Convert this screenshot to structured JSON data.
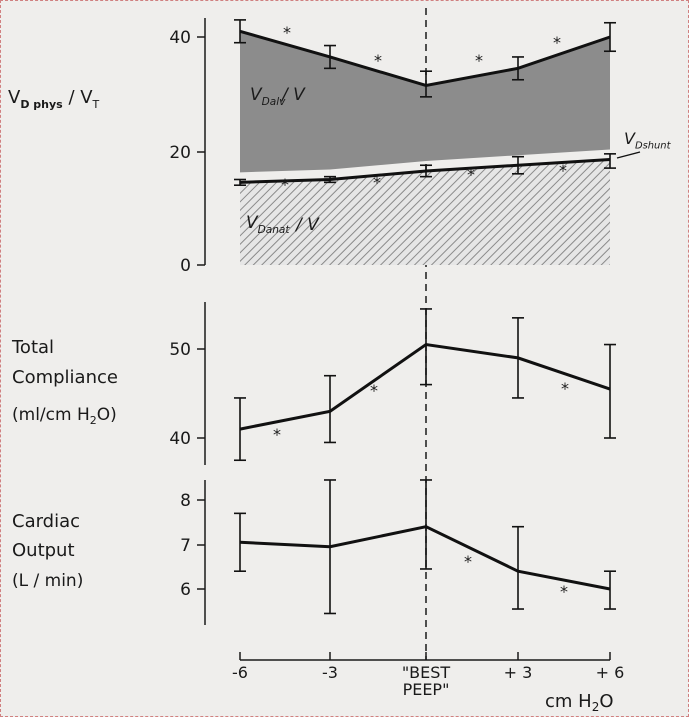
{
  "chart_data": {
    "type": "line",
    "x_positions": [
      -6,
      -3,
      0,
      3,
      6
    ],
    "x_ticks": [
      "-6",
      "-3",
      "\"BEST\nPEEP\"",
      "+ 3",
      "+ 6"
    ],
    "x_unit": "cm H2O",
    "panels": [
      {
        "ylabel": [
          "VDphys / VT"
        ],
        "yticks": [
          "0",
          "20",
          "40"
        ],
        "ylim": [
          0,
          43
        ],
        "series": [
          {
            "name": "VDphys/VT",
            "values": [
              41,
              36.5,
              31.5,
              34.5,
              40
            ],
            "err_low": [
              39,
              34.5,
              29.5,
              32.5,
              37.5
            ],
            "err_high": [
              43,
              38.5,
              34,
              36.5,
              42.5
            ]
          },
          {
            "name": "VDanat/VT",
            "values": [
              14.5,
              15,
              16.5,
              17.5,
              18.5
            ],
            "err_low": [
              14,
              14.5,
              15.5,
              16,
              17
            ],
            "err_high": [
              15,
              15.5,
              17.5,
              19,
              19.5
            ]
          }
        ],
        "annotations": [
          "VDalv/VT",
          "VDanat/VT",
          "VDshunt",
          "*"
        ]
      },
      {
        "ylabel": [
          "Total",
          "Compliance",
          "(ml/cm H2O)"
        ],
        "yticks": [
          "40",
          "50"
        ],
        "ylim": [
          37,
          55
        ],
        "series": [
          {
            "values": [
              41,
              43,
              50.5,
              49,
              45.5
            ],
            "err_low": [
              37.5,
              39.5,
              46,
              44.5,
              40
            ],
            "err_high": [
              44.5,
              47,
              54.5,
              53.5,
              50.5
            ]
          }
        ]
      },
      {
        "ylabel": [
          "Cardiac",
          "Output",
          "(L/min)"
        ],
        "yticks": [
          "6",
          "7",
          "8"
        ],
        "ylim": [
          5.2,
          8.6
        ],
        "series": [
          {
            "values": [
              7.05,
              6.95,
              7.4,
              6.4,
              6.0
            ],
            "err_low": [
              6.4,
              5.45,
              6.45,
              5.55,
              5.55
            ],
            "err_high": [
              7.7,
              8.45,
              8.45,
              7.4,
              6.4
            ]
          }
        ]
      }
    ]
  }
}
